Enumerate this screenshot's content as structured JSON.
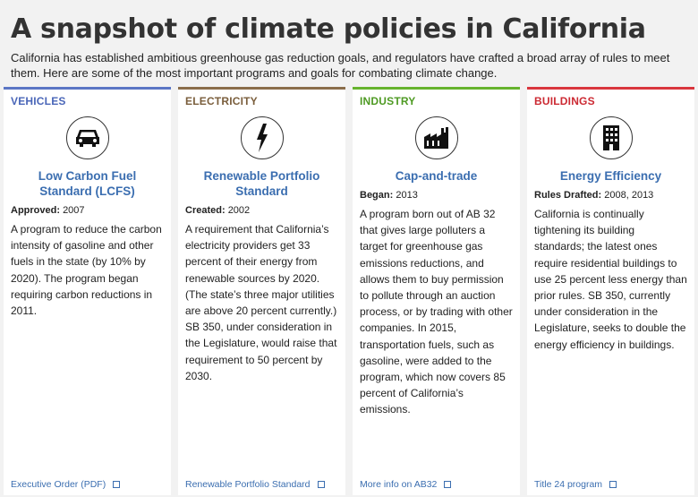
{
  "header": {
    "title": "A snapshot of climate policies in California",
    "intro": "California has established ambitious greenhouse gas reduction goals, and regulators have crafted a broad array of rules to meet them. Here are some of the most important programs and goals for combating climate change."
  },
  "cards": [
    {
      "category": "Vehicles",
      "icon": "car-icon",
      "title": "Low Carbon Fuel Standard (LCFS)",
      "meta_label": "Approved:",
      "meta_value": "2007",
      "description": "A program to reduce the carbon intensity of gasoline and other fuels in the state (by 10% by 2020). The program began requiring carbon reductions in 2011.",
      "link": "Executive Order (PDF)"
    },
    {
      "category": "Electricity",
      "icon": "lightning-icon",
      "title": "Renewable Portfolio Standard",
      "meta_label": "Created:",
      "meta_value": "2002",
      "description": "A requirement that California’s electricity providers get 33 percent of their energy from renewable sources by 2020. (The state’s three major utilities are above 20 percent currently.) SB 350, under consideration in the Legislature, would raise that requirement to 50 percent by 2030.",
      "link": "Renewable Portfolio Standard"
    },
    {
      "category": "Industry",
      "icon": "factory-icon",
      "title": "Cap-and-trade",
      "meta_label": "Began:",
      "meta_value": "2013",
      "description": "A program born out of AB 32 that gives large polluters a target for greenhouse gas emissions reductions, and allows them to buy permission to pollute through an auction process, or by trading with other companies. In 2015, transportation fuels, such as gasoline, were added to the program, which now covers 85 percent of California’s emissions.",
      "link": "More info on AB32"
    },
    {
      "category": "Buildings",
      "icon": "building-icon",
      "title": "Energy Efficiency",
      "meta_label": "Rules Drafted:",
      "meta_value": "2008, 2013",
      "description": "California is continually tightening its building standards; the latest ones require residential buildings to use 25 percent less energy than prior rules. SB 350, currently under consideration in the Legislature, seeks to double the energy efficiency in buildings.",
      "link": "Title 24 program"
    }
  ],
  "colors": {
    "vehicles": "#5b76c4",
    "electricity": "#8a6d4a",
    "industry": "#66b32e",
    "buildings": "#d9363e",
    "link": "#3b6eb0"
  }
}
